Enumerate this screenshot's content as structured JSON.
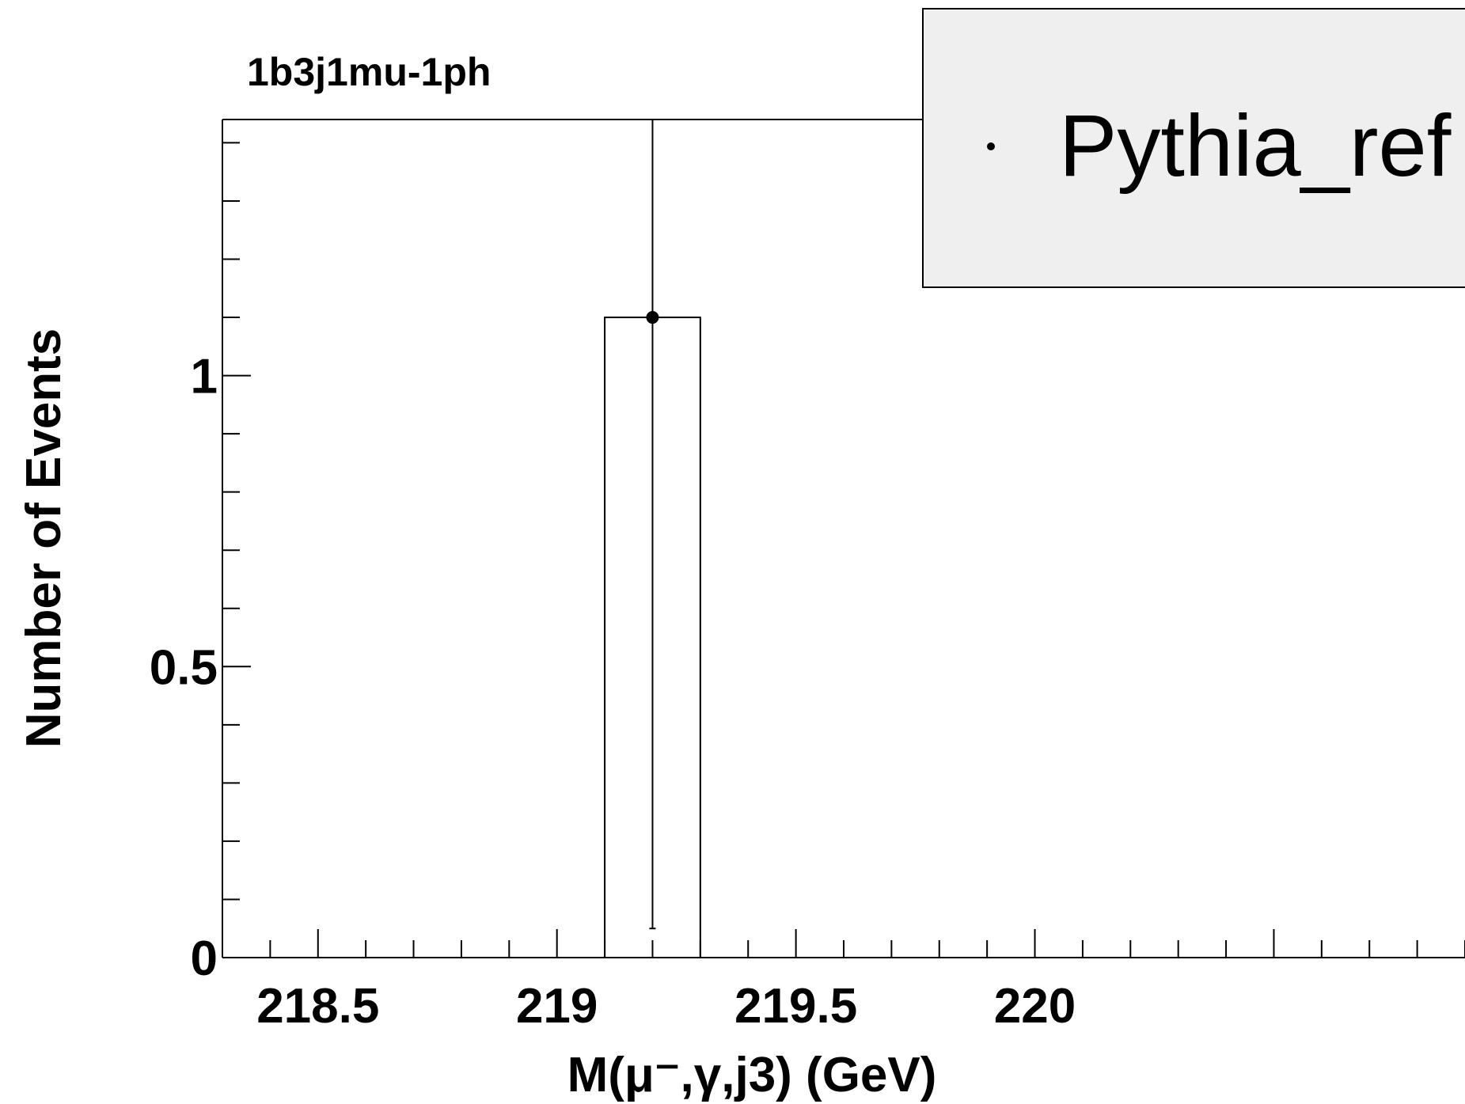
{
  "chart_data": {
    "type": "bar",
    "title": "1b3j1mu-1ph",
    "xlabel": "M(μ⁻,γ,j3) (GeV)",
    "ylabel": "Number of Events",
    "xlim": [
      218.3,
      220.9
    ],
    "ylim": [
      0,
      1.44
    ],
    "x_ticks": [
      218.5,
      219,
      219.5,
      220
    ],
    "x_tick_labels": [
      "218.5",
      "219",
      "219.5",
      "220"
    ],
    "y_ticks": [
      0,
      0.5,
      1
    ],
    "y_tick_labels": [
      "0",
      "0.5",
      "1"
    ],
    "bins": [
      {
        "low": 219.1,
        "high": 219.3,
        "value": 1.1,
        "err_low": 0.05,
        "err_high": 1.44
      }
    ],
    "series": [
      {
        "name": "Pythia_ref",
        "marker": "point",
        "color": "#000000"
      }
    ],
    "legend": {
      "placement": "top-right",
      "background": "#efefef"
    }
  }
}
